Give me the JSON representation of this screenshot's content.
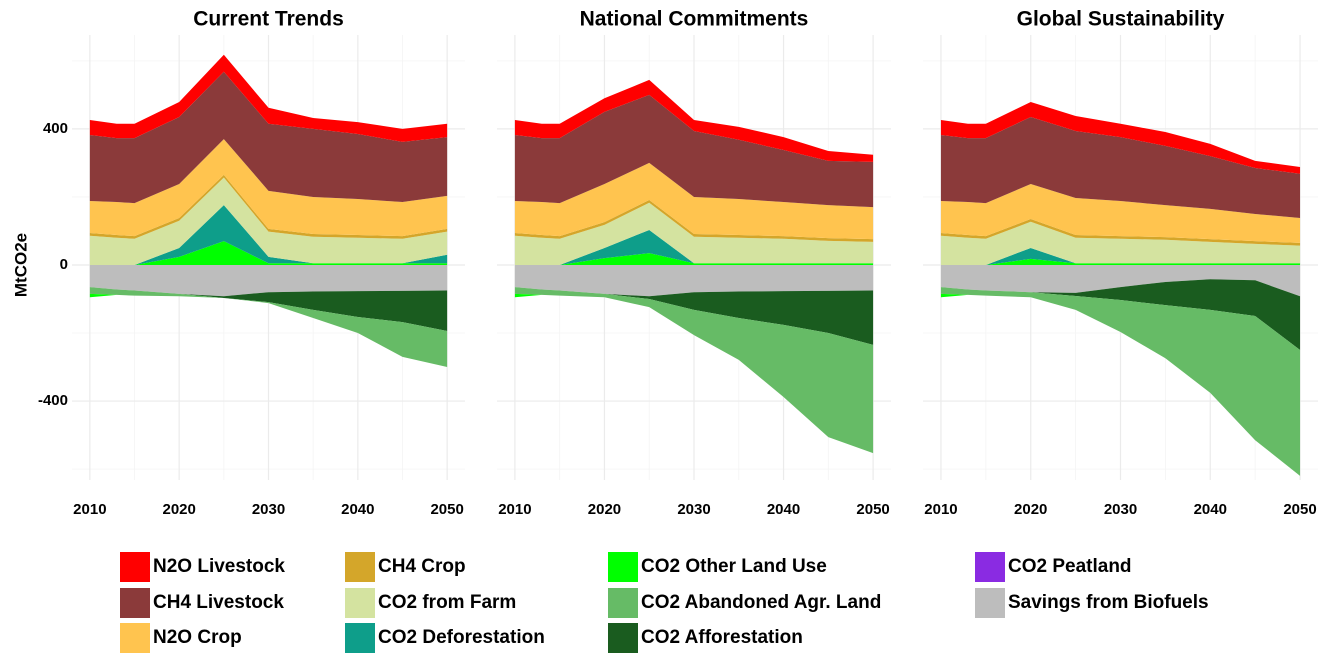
{
  "chart_data": [
    {
      "type": "area",
      "stacked": true,
      "title": "Current Trends",
      "ylabel": "MtCO2e",
      "x": [
        2010,
        2013,
        2015,
        2020,
        2025,
        2030,
        2035,
        2040,
        2045,
        2050
      ],
      "xlim": [
        2008,
        2052
      ],
      "ylim": [
        -632,
        676
      ],
      "xticks": [
        2010,
        2020,
        2030,
        2040,
        2050
      ],
      "xminorticks": [
        2015,
        2025,
        2035,
        2045
      ],
      "yticks": [
        -400,
        0,
        400
      ],
      "yminorticks": [
        -600,
        -200,
        200,
        600
      ],
      "grid": true,
      "series": [
        {
          "name": "N2O Livestock",
          "color": "#ff0000",
          "values": [
            44,
            42,
            42,
            44,
            50,
            47,
            32,
            35,
            38,
            39
          ]
        },
        {
          "name": "CH4 Livestock",
          "color": "#8b3a3a",
          "values": [
            194,
            188,
            191,
            197,
            198,
            197,
            200,
            191,
            177,
            173
          ]
        },
        {
          "name": "N2O Crop",
          "color": "#ffc44f",
          "values": [
            94,
            97,
            97,
            100,
            105,
            112,
            109,
            106,
            100,
            97
          ]
        },
        {
          "name": "CH4 Crop",
          "color": "#d4a62a",
          "values": [
            8,
            8,
            8,
            8,
            8,
            8,
            8,
            8,
            8,
            8
          ]
        },
        {
          "name": "CO2 from Farm",
          "color": "#d4e3a0",
          "values": [
            86,
            80,
            77,
            80,
            81,
            74,
            78,
            75,
            72,
            68
          ]
        },
        {
          "name": "CO2 Deforestation",
          "color": "#0e9e8a",
          "values": [
            0,
            0,
            0,
            26,
            106,
            19,
            0,
            0,
            0,
            25
          ]
        },
        {
          "name": "CO2 Other Land Use",
          "color": "#00ff00",
          "values": [
            -10,
            0,
            0,
            24,
            70,
            5,
            5,
            5,
            5,
            5
          ]
        },
        {
          "name": "CO2 Abandoned Agr. Land",
          "color": "#66bb66",
          "values": [
            -20,
            -16,
            -15,
            -7,
            0,
            -3,
            -24,
            -47,
            -102,
            -106
          ]
        },
        {
          "name": "CO2 Afforestation",
          "color": "#1a5c1f",
          "values": [
            0,
            0,
            0,
            0,
            -5,
            -29,
            -54,
            -76,
            -92,
            -119
          ]
        },
        {
          "name": "CO2 Peatland",
          "color": "#8a2be2",
          "values": [
            0,
            0,
            0,
            0,
            0,
            0,
            0,
            0,
            0,
            0
          ]
        },
        {
          "name": "Savings from Biofuels",
          "color": "#bdbdbd",
          "values": [
            -65,
            -72,
            -75,
            -85,
            -92,
            -80,
            -78,
            -77,
            -76,
            -75
          ]
        }
      ]
    },
    {
      "type": "area",
      "stacked": true,
      "title": "National Commitments",
      "x": [
        2010,
        2013,
        2015,
        2020,
        2025,
        2030,
        2035,
        2040,
        2045,
        2050
      ],
      "xlim": [
        2008,
        2052
      ],
      "ylim": [
        -632,
        676
      ],
      "xticks": [
        2010,
        2020,
        2030,
        2040,
        2050
      ],
      "xminorticks": [
        2015,
        2025,
        2035,
        2045
      ],
      "yticks": [
        -400,
        0,
        400
      ],
      "yminorticks": [
        -600,
        -200,
        200,
        600
      ],
      "grid": true,
      "series": [
        {
          "name": "N2O Livestock",
          "color": "#ff0000",
          "values": [
            44,
            42,
            42,
            40,
            44,
            32,
            38,
            38,
            29,
            21
          ]
        },
        {
          "name": "CH4 Livestock",
          "color": "#8b3a3a",
          "values": [
            194,
            188,
            191,
            212,
            200,
            194,
            174,
            153,
            130,
            133
          ]
        },
        {
          "name": "N2O Crop",
          "color": "#ffc44f",
          "values": [
            94,
            97,
            97,
            112,
            109,
            109,
            106,
            100,
            97,
            94
          ]
        },
        {
          "name": "CH4 Crop",
          "color": "#d4a62a",
          "values": [
            8,
            8,
            8,
            8,
            8,
            8,
            8,
            8,
            8,
            8
          ]
        },
        {
          "name": "CO2 from Farm",
          "color": "#d4e3a0",
          "values": [
            86,
            80,
            77,
            68,
            80,
            78,
            75,
            72,
            66,
            63
          ]
        },
        {
          "name": "CO2 Deforestation",
          "color": "#0e9e8a",
          "values": [
            0,
            0,
            0,
            30,
            68,
            0,
            0,
            0,
            0,
            0
          ]
        },
        {
          "name": "CO2 Other Land Use",
          "color": "#00ff00",
          "values": [
            -10,
            0,
            0,
            20,
            35,
            5,
            5,
            5,
            5,
            5
          ]
        },
        {
          "name": "CO2 Abandoned Agr. Land",
          "color": "#66bb66",
          "values": [
            -20,
            -16,
            -15,
            -10,
            -24,
            -74,
            -123,
            -212,
            -306,
            -318
          ]
        },
        {
          "name": "CO2 Afforestation",
          "color": "#1a5c1f",
          "values": [
            0,
            0,
            0,
            0,
            -8,
            -52,
            -78,
            -99,
            -124,
            -160
          ]
        },
        {
          "name": "CO2 Peatland",
          "color": "#8a2be2",
          "values": [
            0,
            0,
            0,
            0,
            0,
            0,
            0,
            0,
            0,
            0
          ]
        },
        {
          "name": "Savings from Biofuels",
          "color": "#bdbdbd",
          "values": [
            -65,
            -72,
            -75,
            -85,
            -92,
            -80,
            -78,
            -77,
            -76,
            -75
          ]
        }
      ]
    },
    {
      "type": "area",
      "stacked": true,
      "title": "Global Sustainability",
      "x": [
        2010,
        2013,
        2015,
        2020,
        2025,
        2030,
        2035,
        2040,
        2045,
        2050
      ],
      "xlim": [
        2008,
        2052
      ],
      "ylim": [
        -632,
        676
      ],
      "xticks": [
        2010,
        2020,
        2030,
        2040,
        2050
      ],
      "xminorticks": [
        2015,
        2025,
        2035,
        2045
      ],
      "yticks": [
        -400,
        0,
        400
      ],
      "yminorticks": [
        -600,
        -200,
        200,
        600
      ],
      "grid": true,
      "series": [
        {
          "name": "N2O Livestock",
          "color": "#ff0000",
          "values": [
            44,
            42,
            42,
            44,
            44,
            39,
            41,
            36,
            21,
            20
          ]
        },
        {
          "name": "CH4 Livestock",
          "color": "#8b3a3a",
          "values": [
            194,
            188,
            191,
            197,
            197,
            188,
            174,
            155,
            135,
            130
          ]
        },
        {
          "name": "N2O Crop",
          "color": "#ffc44f",
          "values": [
            94,
            97,
            97,
            103,
            109,
            103,
            94,
            89,
            80,
            73
          ]
        },
        {
          "name": "CH4 Crop",
          "color": "#d4a62a",
          "values": [
            8,
            8,
            8,
            8,
            8,
            8,
            8,
            8,
            8,
            8
          ]
        },
        {
          "name": "CO2 from Farm",
          "color": "#d4e3a0",
          "values": [
            86,
            80,
            77,
            77,
            75,
            72,
            69,
            63,
            57,
            52
          ]
        },
        {
          "name": "CO2 Deforestation",
          "color": "#0e9e8a",
          "values": [
            0,
            0,
            0,
            32,
            0,
            0,
            0,
            0,
            0,
            0
          ]
        },
        {
          "name": "CO2 Other Land Use",
          "color": "#00ff00",
          "values": [
            -10,
            0,
            0,
            18,
            5,
            5,
            5,
            5,
            5,
            5
          ]
        },
        {
          "name": "CO2 Abandoned Agr. Land",
          "color": "#66bb66",
          "values": [
            -20,
            -16,
            -15,
            -15,
            -41,
            -94,
            -156,
            -244,
            -365,
            -370
          ]
        },
        {
          "name": "CO2 Afforestation",
          "color": "#1a5c1f",
          "values": [
            0,
            0,
            0,
            0,
            -9,
            -38,
            -68,
            -90,
            -105,
            -158
          ]
        },
        {
          "name": "CO2 Peatland",
          "color": "#8a2be2",
          "values": [
            0,
            0,
            0,
            0,
            0,
            0,
            0,
            0,
            0,
            0
          ]
        },
        {
          "name": "Savings from Biofuels",
          "color": "#bdbdbd",
          "values": [
            -65,
            -72,
            -75,
            -80,
            -82,
            -65,
            -50,
            -42,
            -45,
            -92
          ]
        }
      ]
    }
  ]
}
